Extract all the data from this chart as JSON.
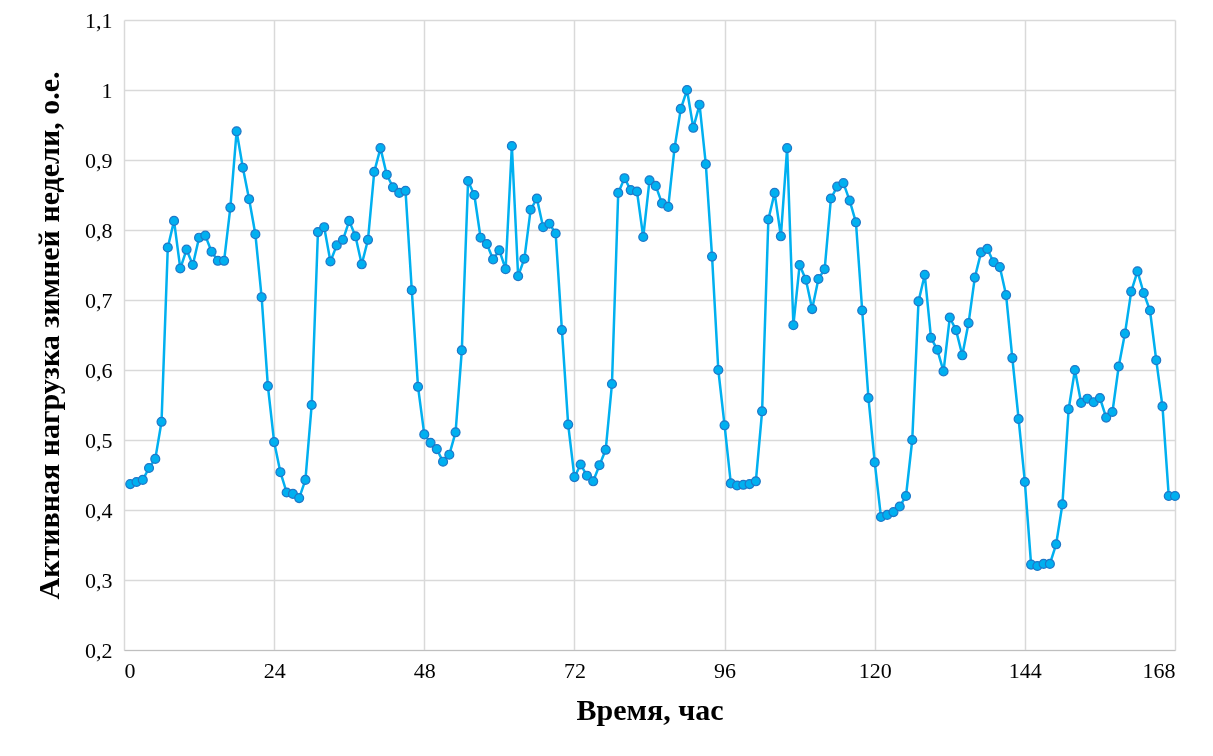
{
  "chart_data": {
    "type": "line",
    "xlabel": "Время, час",
    "ylabel": "Активная нагрузка зимней недели, о.е.",
    "x": [
      1,
      2,
      3,
      4,
      5,
      6,
      7,
      8,
      9,
      10,
      11,
      12,
      13,
      14,
      15,
      16,
      17,
      18,
      19,
      20,
      21,
      22,
      23,
      24,
      25,
      26,
      27,
      28,
      29,
      30,
      31,
      32,
      33,
      34,
      35,
      36,
      37,
      38,
      39,
      40,
      41,
      42,
      43,
      44,
      45,
      46,
      47,
      48,
      49,
      50,
      51,
      52,
      53,
      54,
      55,
      56,
      57,
      58,
      59,
      60,
      61,
      62,
      63,
      64,
      65,
      66,
      67,
      68,
      69,
      70,
      71,
      72,
      73,
      74,
      75,
      76,
      77,
      78,
      79,
      80,
      81,
      82,
      83,
      84,
      85,
      86,
      87,
      88,
      89,
      90,
      91,
      92,
      93,
      94,
      95,
      96,
      97,
      98,
      99,
      100,
      101,
      102,
      103,
      104,
      105,
      106,
      107,
      108,
      109,
      110,
      111,
      112,
      113,
      114,
      115,
      116,
      117,
      118,
      119,
      120,
      121,
      122,
      123,
      124,
      125,
      126,
      127,
      128,
      129,
      130,
      131,
      132,
      133,
      134,
      135,
      136,
      137,
      138,
      139,
      140,
      141,
      142,
      143,
      144,
      145,
      146,
      147,
      148,
      149,
      150,
      151,
      152,
      153,
      154,
      155,
      156,
      157,
      158,
      159,
      160,
      161,
      162,
      163,
      164,
      165,
      166,
      167,
      168
    ],
    "series": [
      {
        "color": "#00b0f0",
        "values": [
          0.437,
          0.44,
          0.443,
          0.46,
          0.473,
          0.526,
          0.775,
          0.813,
          0.745,
          0.772,
          0.75,
          0.789,
          0.792,
          0.769,
          0.756,
          0.756,
          0.832,
          0.941,
          0.889,
          0.844,
          0.794,
          0.704,
          0.577,
          0.497,
          0.454,
          0.425,
          0.423,
          0.417,
          0.443,
          0.55,
          0.797,
          0.804,
          0.755,
          0.778,
          0.786,
          0.813,
          0.791,
          0.751,
          0.786,
          0.883,
          0.917,
          0.879,
          0.861,
          0.853,
          0.856,
          0.714,
          0.576,
          0.508,
          0.496,
          0.487,
          0.469,
          0.479,
          0.511,
          0.628,
          0.87,
          0.85,
          0.789,
          0.78,
          0.758,
          0.771,
          0.744,
          0.92,
          0.734,
          0.759,
          0.829,
          0.845,
          0.804,
          0.809,
          0.795,
          0.657,
          0.522,
          0.447,
          0.465,
          0.449,
          0.441,
          0.464,
          0.486,
          0.58,
          0.853,
          0.874,
          0.857,
          0.855,
          0.79,
          0.871,
          0.863,
          0.838,
          0.833,
          0.917,
          0.973,
          1.0,
          0.946,
          0.979,
          0.894,
          0.762,
          0.6,
          0.521,
          0.438,
          0.435,
          0.436,
          0.437,
          0.441,
          0.541,
          0.815,
          0.853,
          0.791,
          0.917,
          0.664,
          0.75,
          0.729,
          0.687,
          0.73,
          0.744,
          0.845,
          0.862,
          0.867,
          0.842,
          0.811,
          0.685,
          0.56,
          0.468,
          0.39,
          0.393,
          0.397,
          0.405,
          0.42,
          0.5,
          0.698,
          0.736,
          0.646,
          0.629,
          0.598,
          0.675,
          0.657,
          0.621,
          0.667,
          0.732,
          0.768,
          0.773,
          0.754,
          0.747,
          0.707,
          0.617,
          0.53,
          0.44,
          0.322,
          0.32,
          0.323,
          0.323,
          0.351,
          0.408,
          0.544,
          0.6,
          0.553,
          0.559,
          0.554,
          0.56,
          0.532,
          0.54,
          0.605,
          0.652,
          0.712,
          0.741,
          0.71,
          0.685,
          0.614,
          0.548,
          0.42,
          0.42
        ]
      }
    ],
    "xlim": [
      0,
      168
    ],
    "xticks": [
      0,
      24,
      48,
      72,
      96,
      120,
      144,
      168
    ],
    "ylim": [
      0.2,
      1.1
    ],
    "yticks": [
      {
        "value": 0.2,
        "label": "0,2"
      },
      {
        "value": 0.3,
        "label": "0,3"
      },
      {
        "value": 0.4,
        "label": "0,4"
      },
      {
        "value": 0.5,
        "label": "0,5"
      },
      {
        "value": 0.6,
        "label": "0,6"
      },
      {
        "value": 0.7,
        "label": "0,7"
      },
      {
        "value": 0.8,
        "label": "0,8"
      },
      {
        "value": 0.9,
        "label": "0,9"
      },
      1,
      {
        "value": 1.1,
        "label": "1,1"
      }
    ],
    "grid": true,
    "marker": "circle",
    "line_style": "solid"
  }
}
